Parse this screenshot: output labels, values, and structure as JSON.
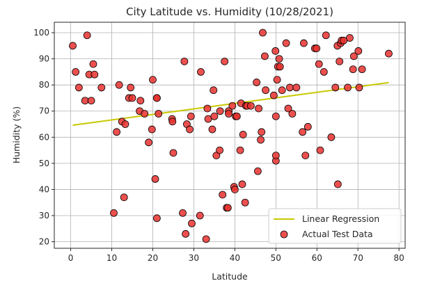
{
  "chart_data": {
    "type": "scatter",
    "title": "City Latitude vs. Humidity (10/28/2021)",
    "xlabel": "Latitude",
    "ylabel": "Humidity (%)",
    "xlim": [
      -4,
      81.5
    ],
    "ylim": [
      17.5,
      104
    ],
    "xticks": [
      0,
      10,
      20,
      30,
      40,
      50,
      60,
      70,
      80
    ],
    "yticks": [
      20,
      30,
      40,
      50,
      60,
      70,
      80,
      90,
      100
    ],
    "grid": true,
    "legend_position": "lower right",
    "series": [
      {
        "name": "Actual Test Data",
        "kind": "scatter",
        "color": "#e8312f",
        "edgecolor": "#000000",
        "points": [
          [
            0.5,
            95
          ],
          [
            1.2,
            85
          ],
          [
            2,
            79
          ],
          [
            4,
            99
          ],
          [
            3.5,
            74
          ],
          [
            4.5,
            84
          ],
          [
            5,
            74
          ],
          [
            5.5,
            88
          ],
          [
            5.8,
            84
          ],
          [
            7.5,
            79
          ],
          [
            10.5,
            31
          ],
          [
            11.2,
            62
          ],
          [
            11.8,
            80
          ],
          [
            12.5,
            66
          ],
          [
            13,
            37
          ],
          [
            13.3,
            65
          ],
          [
            14.2,
            75
          ],
          [
            14.6,
            79
          ],
          [
            15,
            75
          ],
          [
            16.8,
            70
          ],
          [
            17,
            74
          ],
          [
            18,
            69
          ],
          [
            19,
            58
          ],
          [
            19.8,
            63
          ],
          [
            20,
            82
          ],
          [
            20.6,
            44
          ],
          [
            21,
            29
          ],
          [
            21,
            75
          ],
          [
            21,
            75
          ],
          [
            21.4,
            69
          ],
          [
            24.7,
            67
          ],
          [
            24.8,
            66
          ],
          [
            25,
            54
          ],
          [
            27.3,
            31
          ],
          [
            27.7,
            89
          ],
          [
            28,
            23
          ],
          [
            28.3,
            65
          ],
          [
            29,
            63
          ],
          [
            29.3,
            68
          ],
          [
            29.5,
            27
          ],
          [
            31.5,
            30
          ],
          [
            31.7,
            85
          ],
          [
            33,
            21
          ],
          [
            33.3,
            71
          ],
          [
            33.5,
            67
          ],
          [
            34.5,
            63
          ],
          [
            34.8,
            78
          ],
          [
            35,
            68
          ],
          [
            35.5,
            53
          ],
          [
            36.3,
            55
          ],
          [
            36.4,
            70
          ],
          [
            37,
            38
          ],
          [
            37.5,
            89
          ],
          [
            38,
            33
          ],
          [
            38.3,
            33
          ],
          [
            38.5,
            70
          ],
          [
            38.5,
            69
          ],
          [
            39.4,
            72
          ],
          [
            39.8,
            41
          ],
          [
            40,
            40
          ],
          [
            40.2,
            68
          ],
          [
            40.5,
            68
          ],
          [
            41.3,
            55
          ],
          [
            41.5,
            73
          ],
          [
            41.8,
            42
          ],
          [
            42,
            61
          ],
          [
            42.5,
            35
          ],
          [
            42.7,
            72
          ],
          [
            43,
            72
          ],
          [
            43.9,
            72
          ],
          [
            45.3,
            81
          ],
          [
            45.6,
            47
          ],
          [
            45.8,
            71
          ],
          [
            46.3,
            59
          ],
          [
            46.5,
            62
          ],
          [
            46.8,
            100
          ],
          [
            47.3,
            91
          ],
          [
            47.5,
            78
          ],
          [
            49.5,
            76
          ],
          [
            49.9,
            93
          ],
          [
            50,
            51
          ],
          [
            50,
            53
          ],
          [
            50,
            68
          ],
          [
            50.3,
            82
          ],
          [
            50.5,
            87
          ],
          [
            50.8,
            90
          ],
          [
            51,
            87
          ],
          [
            51.5,
            78
          ],
          [
            52.5,
            96
          ],
          [
            53,
            71
          ],
          [
            53.4,
            79
          ],
          [
            54,
            69
          ],
          [
            55,
            79
          ],
          [
            56.5,
            62
          ],
          [
            56.8,
            96
          ],
          [
            57.2,
            53
          ],
          [
            57.8,
            64
          ],
          [
            59.5,
            94
          ],
          [
            59.9,
            94
          ],
          [
            60.5,
            88
          ],
          [
            60.8,
            55
          ],
          [
            61.7,
            85
          ],
          [
            62.2,
            99
          ],
          [
            63.5,
            60
          ],
          [
            64.5,
            79
          ],
          [
            65,
            95
          ],
          [
            65.1,
            42
          ],
          [
            65.5,
            89
          ],
          [
            65.8,
            96
          ],
          [
            66,
            97
          ],
          [
            66.5,
            97
          ],
          [
            67.5,
            79
          ],
          [
            68,
            98
          ],
          [
            68.8,
            86
          ],
          [
            69,
            91
          ],
          [
            70.1,
            93
          ],
          [
            70.3,
            79
          ],
          [
            71,
            86
          ],
          [
            77.5,
            92
          ]
        ]
      },
      {
        "name": "Linear Regression",
        "kind": "line",
        "color": "#c8c800",
        "x": [
          0.5,
          77.5
        ],
        "y": [
          64.6,
          80.9
        ]
      }
    ]
  }
}
